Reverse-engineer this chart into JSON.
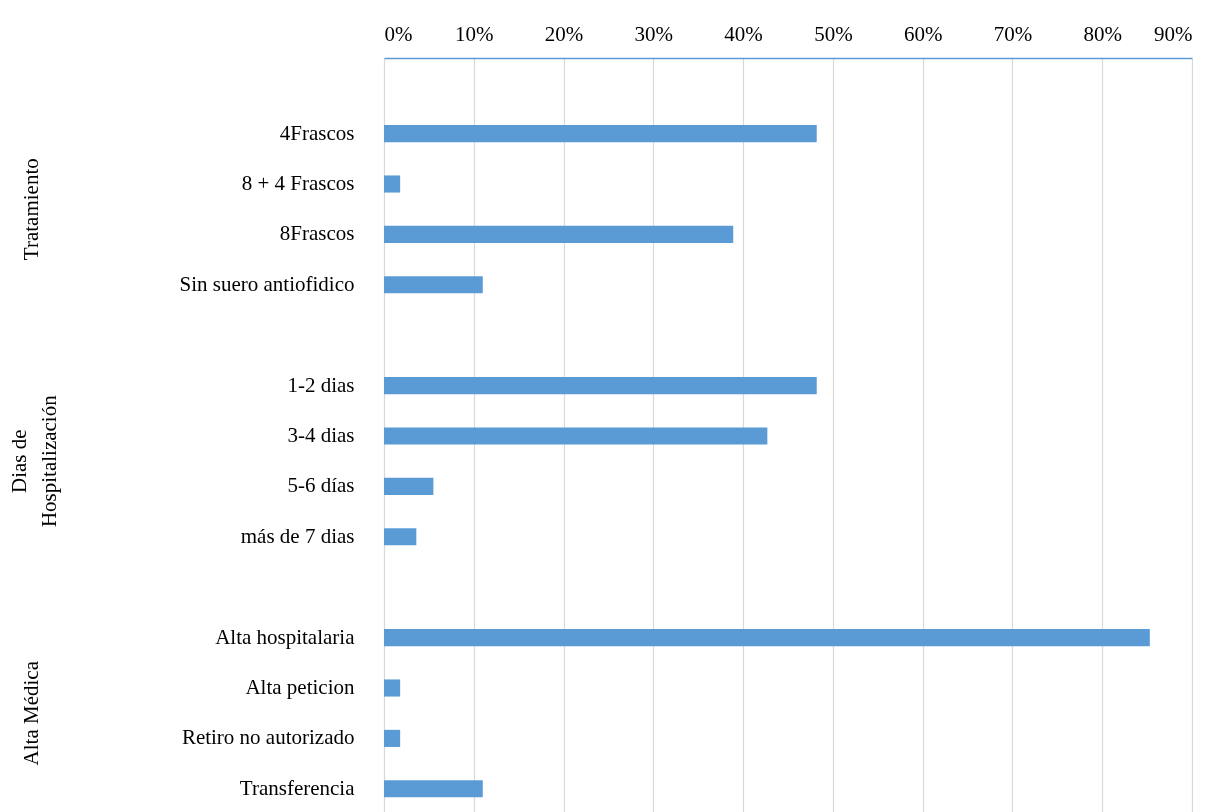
{
  "chart_data": {
    "type": "bar",
    "orientation": "horizontal",
    "categories": [
      null,
      "4Frascos",
      "8 + 4 Frascos",
      "8Frascos",
      "Sin suero antiofidico",
      null,
      "1-2 dias",
      "3-4 dias",
      "5-6 días",
      "más de 7 dias",
      null,
      "Alta hospitalaria",
      "Alta peticion",
      "Retiro no autorizado",
      "Transferencia"
    ],
    "values": [
      null,
      48.2,
      1.8,
      38.9,
      11.0,
      null,
      48.2,
      42.7,
      5.5,
      3.6,
      null,
      85.3,
      1.8,
      1.8,
      11.0
    ],
    "color": "#5b9bd5",
    "xlim": [
      0,
      90
    ],
    "xticks": [
      {
        "value": 0,
        "label": "0%"
      },
      {
        "value": 10,
        "label": "10%"
      },
      {
        "value": 20,
        "label": "20%"
      },
      {
        "value": 30,
        "label": "30%"
      },
      {
        "value": 40,
        "label": "40%"
      },
      {
        "value": 50,
        "label": "50%"
      },
      {
        "value": 60,
        "label": "60%"
      },
      {
        "value": 70,
        "label": "70%"
      },
      {
        "value": 80,
        "label": "80%"
      },
      {
        "value": 90,
        "label": "90%"
      }
    ],
    "grid": "x",
    "annotations": [
      "Tratamiento",
      "Dias de Hospitalización",
      "Alta Médica"
    ]
  }
}
